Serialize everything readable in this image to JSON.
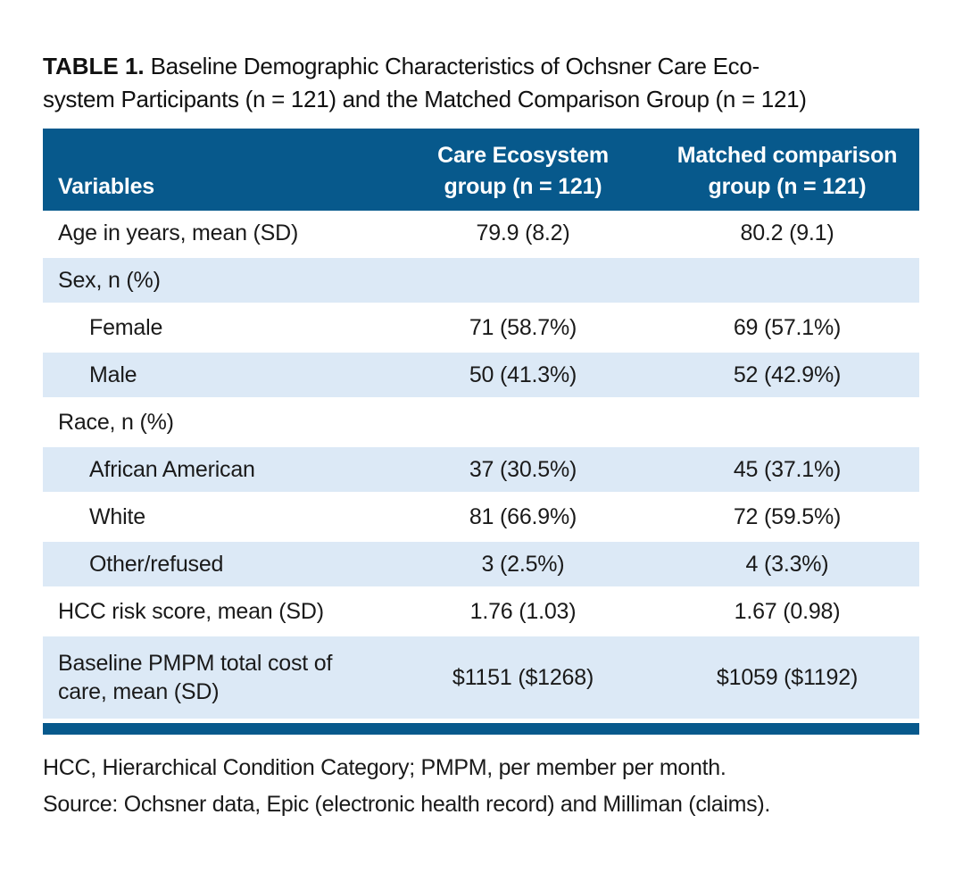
{
  "title": {
    "bold": "TABLE 1.",
    "line1_rest": "Baseline Demographic Characteristics of Ochsner Care Eco-",
    "line2": "system Participants (n = 121) and the Matched Comparison Group (n = 121)"
  },
  "table": {
    "header": {
      "col1": "Variables",
      "col2_line1": "Care Ecosystem",
      "col2_line2": "group (n = 121)",
      "col3_line1": "Matched comparison",
      "col3_line2": "group (n = 121)"
    },
    "rows": [
      {
        "label": "Age in years, mean (SD)",
        "indent": false,
        "shaded": false,
        "col2": "79.9 (8.2)",
        "col3": "80.2 (9.1)"
      },
      {
        "label": "Sex, n (%)",
        "indent": false,
        "shaded": true,
        "col2": "",
        "col3": ""
      },
      {
        "label": "Female",
        "indent": true,
        "shaded": false,
        "col2": "71 (58.7%)",
        "col3": "69 (57.1%)"
      },
      {
        "label": "Male",
        "indent": true,
        "shaded": true,
        "col2": "50 (41.3%)",
        "col3": "52 (42.9%)"
      },
      {
        "label": "Race, n (%)",
        "indent": false,
        "shaded": false,
        "col2": "",
        "col3": ""
      },
      {
        "label": "African American",
        "indent": true,
        "shaded": true,
        "col2": "37 (30.5%)",
        "col3": "45 (37.1%)"
      },
      {
        "label": "White",
        "indent": true,
        "shaded": false,
        "col2": "81 (66.9%)",
        "col3": "72 (59.5%)"
      },
      {
        "label": "Other/refused",
        "indent": true,
        "shaded": true,
        "col2": "3 (2.5%)",
        "col3": "4 (3.3%)"
      },
      {
        "label": "HCC risk score, mean (SD)",
        "indent": false,
        "shaded": false,
        "col2": "1.76 (1.03)",
        "col3": "1.67 (0.98)"
      },
      {
        "label": "Baseline PMPM total cost of care, mean (SD)",
        "indent": false,
        "shaded": true,
        "col2": "$1151 ($1268)",
        "col3": "$1059 ($1192)"
      }
    ]
  },
  "footnotes": [
    "HCC, Hierarchical Condition Category; PMPM, per member per month.",
    "Source: Ochsner data, Epic (electronic health record) and Milliman (claims)."
  ],
  "colors": {
    "header_bg": "#07598c",
    "shaded_row_bg": "#dce9f6",
    "bottom_rule": "#07598c",
    "header_text": "#ffffff",
    "body_text": "#1a1a1a"
  }
}
